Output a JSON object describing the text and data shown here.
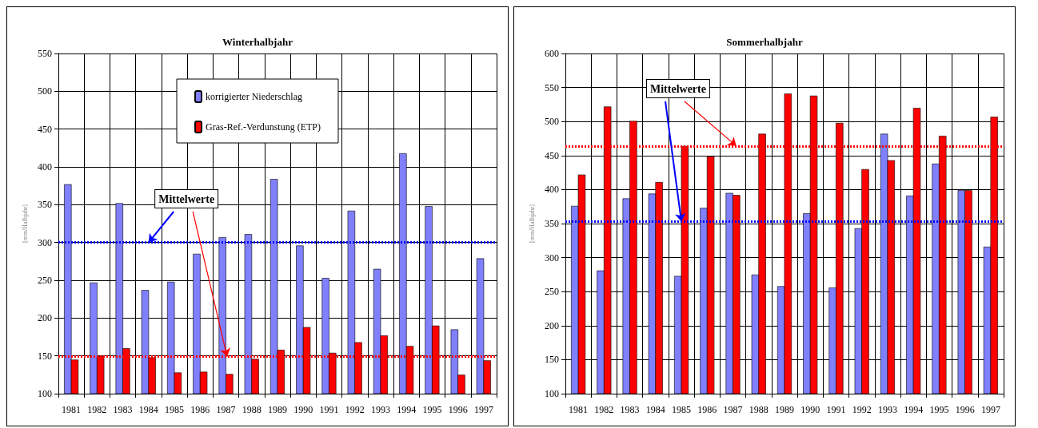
{
  "chart_data": [
    {
      "type": "bar",
      "title": "Winterhalbjahr",
      "ylabel": "[mm/Halbjahr]",
      "categories": [
        "1981",
        "1982",
        "1983",
        "1984",
        "1985",
        "1986",
        "1987",
        "1988",
        "1989",
        "1990",
        "1991",
        "1992",
        "1993",
        "1994",
        "1995",
        "1996",
        "1997"
      ],
      "series": [
        {
          "name": "korrigierter Niederschlag",
          "color": "#8080ff",
          "values": [
            377,
            247,
            352,
            237,
            248,
            285,
            307,
            311,
            384,
            296,
            253,
            342,
            265,
            418,
            348,
            185,
            279
          ]
        },
        {
          "name": "Gras-Ref.-Verdunstung (ETP)",
          "color": "#ff0000",
          "values": [
            145,
            150,
            160,
            148,
            128,
            129,
            126,
            146,
            158,
            188,
            154,
            168,
            177,
            163,
            190,
            125,
            144
          ]
        }
      ],
      "ylim": [
        100,
        550
      ],
      "yticks": [
        100,
        150,
        200,
        250,
        300,
        350,
        400,
        450,
        500,
        550
      ],
      "grid": true,
      "legend": "top",
      "ref_lines": [
        {
          "axis": "y",
          "value": 300,
          "color": "#0000ff",
          "line_style": "dotted"
        },
        {
          "axis": "y",
          "value": 149,
          "color": "#ff0000",
          "line_style": "dotted"
        }
      ],
      "annotations": [
        {
          "text": "Mittelwerte",
          "x": "1984",
          "y": 300
        }
      ]
    },
    {
      "type": "bar",
      "title": "Sommerhalbjahr",
      "ylabel": "[mm/Halbjahr]",
      "categories": [
        "1981",
        "1982",
        "1983",
        "1984",
        "1985",
        "1986",
        "1987",
        "1988",
        "1989",
        "1990",
        "1991",
        "1992",
        "1993",
        "1994",
        "1995",
        "1996",
        "1997"
      ],
      "series": [
        {
          "color": "#8080ff",
          "values": [
            376,
            281,
            387,
            394,
            273,
            373,
            395,
            275,
            258,
            365,
            256,
            343,
            482,
            391,
            438,
            399,
            316
          ]
        },
        {
          "color": "#ff0000",
          "values": [
            422,
            522,
            501,
            411,
            464,
            449,
            392,
            482,
            541,
            538,
            498,
            430,
            443,
            520,
            479,
            399,
            507
          ]
        }
      ],
      "ylim": [
        100,
        600
      ],
      "yticks": [
        100,
        150,
        200,
        250,
        300,
        350,
        400,
        450,
        500,
        550,
        600
      ],
      "grid": true,
      "ref_lines": [
        {
          "axis": "y",
          "value": 353,
          "color": "#0000ff",
          "line_style": "dotted"
        },
        {
          "axis": "y",
          "value": 464,
          "color": "#ff0000",
          "line_style": "dotted"
        }
      ],
      "annotations": [
        {
          "text": "Mittelwerte",
          "x": "1985",
          "y": 353
        }
      ]
    }
  ]
}
